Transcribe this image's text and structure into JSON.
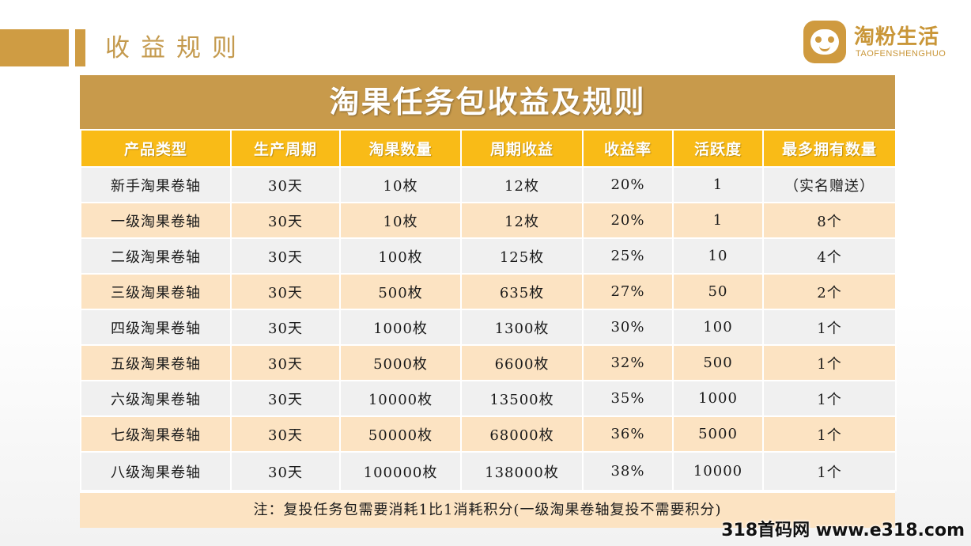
{
  "header": {
    "section_title": "收益规则"
  },
  "logo": {
    "name": "淘粉生活",
    "subtitle": "TAOFENSHENGHUO"
  },
  "table": {
    "title": "淘果任务包收益及规则",
    "columns": [
      "产品类型",
      "生产周期",
      "淘果数量",
      "周期收益",
      "收益率",
      "活跃度",
      "最多拥有数量"
    ],
    "rows": [
      [
        "新手淘果卷轴",
        "30天",
        "10枚",
        "12枚",
        "20%",
        "1",
        "（实名赠送）"
      ],
      [
        "一级淘果卷轴",
        "30天",
        "10枚",
        "12枚",
        "20%",
        "1",
        "8个"
      ],
      [
        "二级淘果卷轴",
        "30天",
        "100枚",
        "125枚",
        "25%",
        "10",
        "4个"
      ],
      [
        "三级淘果卷轴",
        "30天",
        "500枚",
        "635枚",
        "27%",
        "50",
        "2个"
      ],
      [
        "四级淘果卷轴",
        "30天",
        "1000枚",
        "1300枚",
        "30%",
        "100",
        "1个"
      ],
      [
        "五级淘果卷轴",
        "30天",
        "5000枚",
        "6600枚",
        "32%",
        "500",
        "1个"
      ],
      [
        "六级淘果卷轴",
        "30天",
        "10000枚",
        "13500枚",
        "35%",
        "1000",
        "1个"
      ],
      [
        "七级淘果卷轴",
        "30天",
        "50000枚",
        "68000枚",
        "36%",
        "5000",
        "1个"
      ],
      [
        "八级淘果卷轴",
        "30天",
        "100000枚",
        "138000枚",
        "38%",
        "10000",
        "1个"
      ]
    ],
    "note": "注：复投任务包需要消耗1比1消耗积分(一级淘果卷轴复投不需要积分)"
  },
  "watermark": "318首码网 www.e318.com",
  "colors": {
    "accent_gold": "#cf9c43",
    "title_bar": "#c89a4b",
    "header_yellow": "#f9bb17",
    "row_gray": "#f0f0f0",
    "row_peach": "#fce3c2"
  }
}
